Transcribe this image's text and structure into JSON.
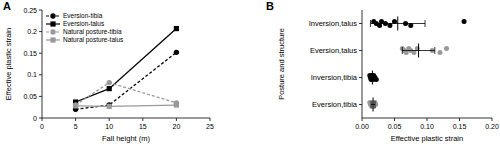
{
  "chart_data": [
    {
      "type": "line",
      "title": "A",
      "x_label": "Fall height (m)",
      "y_label": "Effective plastic strain",
      "x": [
        5,
        10,
        20
      ],
      "xlim": [
        0,
        25
      ],
      "xticks": [
        0,
        5,
        10,
        15,
        20,
        25
      ],
      "ylim": [
        0,
        0.25
      ],
      "yticks": [
        0,
        0.05,
        0.1,
        0.15,
        0.2,
        0.25
      ],
      "legend": "upper left",
      "series": [
        {
          "name": "Eversion-tibia",
          "color": "#000000",
          "marker": "circle",
          "line_style": "dashed",
          "values": [
            0.02,
            0.03,
            0.152
          ]
        },
        {
          "name": "Eversion-talus",
          "color": "#000000",
          "marker": "square",
          "line_style": "solid",
          "values": [
            0.037,
            0.068,
            0.207
          ]
        },
        {
          "name": "Natural posture-tibia",
          "color": "#999999",
          "marker": "circle",
          "line_style": "dashed",
          "values": [
            0.03,
            0.082,
            0.035
          ]
        },
        {
          "name": "Natural posture-talus",
          "color": "#999999",
          "marker": "square",
          "line_style": "solid",
          "values": [
            0.028,
            0.027,
            0.03
          ]
        }
      ]
    },
    {
      "type": "strip",
      "orientation": "horizontal",
      "title": "B",
      "x_label": "Effective plastic strain",
      "y_label": "Posture and structure",
      "categories": [
        "Inversion,talus",
        "Eversion,talus",
        "Inversion,tibia",
        "Eversion,tibia"
      ],
      "colors": [
        "#000000",
        "#999999",
        "#000000",
        "#999999"
      ],
      "values": [
        [
          0.018,
          0.022,
          0.027,
          0.03,
          0.036,
          0.043,
          0.05,
          0.067,
          0.075,
          0.157
        ],
        [
          0.062,
          0.065,
          0.068,
          0.072,
          0.075,
          0.08,
          0.085,
          0.108,
          0.12,
          0.13
        ],
        [
          0.012,
          0.013,
          0.014,
          0.015,
          0.016,
          0.017,
          0.018,
          0.02,
          0.022
        ],
        [
          0.012,
          0.013,
          0.015,
          0.016,
          0.017,
          0.018,
          0.02,
          0.021
        ]
      ],
      "means": [
        0.055,
        0.087,
        0.016,
        0.017
      ],
      "errors": [
        0.042,
        0.025,
        0.003,
        0.003
      ],
      "xlim": [
        0,
        0.2
      ],
      "xticks": [
        {
          "value": 0,
          "label": "0.00"
        },
        {
          "value": 0.05,
          "label": "0.05"
        },
        {
          "value": 0.1,
          "label": "0.10"
        },
        {
          "value": 0.15,
          "label": "0.15"
        },
        {
          "value": 0.2,
          "label": "0.20"
        }
      ]
    }
  ]
}
